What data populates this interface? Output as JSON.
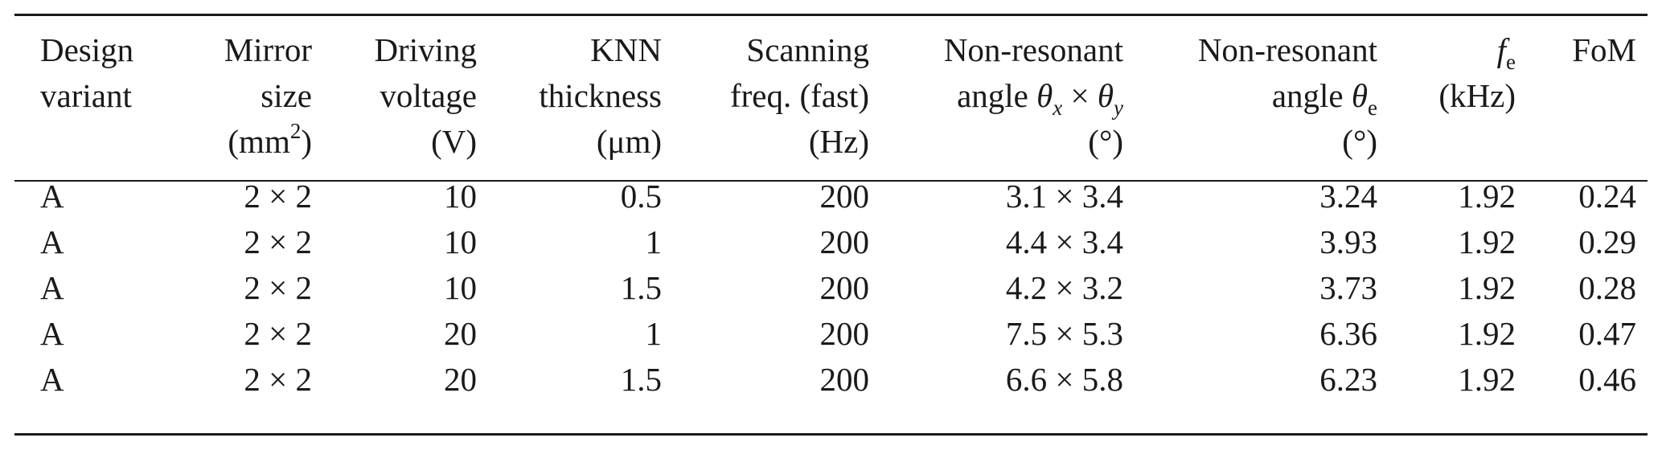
{
  "table": {
    "columns": [
      {
        "key": "variant",
        "lines": [
          "Design",
          "variant"
        ]
      },
      {
        "key": "mirror_size",
        "lines": [
          "Mirror",
          "size",
          "(mm²)"
        ]
      },
      {
        "key": "voltage",
        "lines": [
          "Driving",
          "voltage",
          "(V)"
        ]
      },
      {
        "key": "knn_thickness",
        "lines": [
          "KNN",
          "thickness",
          "(μm)"
        ]
      },
      {
        "key": "scan_freq",
        "lines": [
          "Scanning",
          "freq. (fast)",
          "(Hz)"
        ]
      },
      {
        "key": "angle_xy",
        "lines": [
          "Non-resonant",
          "angle θx × θy",
          "(°)"
        ]
      },
      {
        "key": "angle_e",
        "lines": [
          "Non-resonant",
          "angle θe",
          "(°)"
        ]
      },
      {
        "key": "fe",
        "lines": [
          "fe",
          "(kHz)"
        ]
      },
      {
        "key": "fom",
        "lines": [
          "FoM"
        ]
      }
    ],
    "header": {
      "variant": {
        "l1": "Design",
        "l2": "variant"
      },
      "mirror_size": {
        "l1": "Mirror",
        "l2": "size",
        "l3_pre": "(mm",
        "l3_sup": "2",
        "l3_post": ")"
      },
      "voltage": {
        "l1": "Driving",
        "l2": "voltage",
        "l3": "(V)"
      },
      "knn_thickness": {
        "l1": "KNN",
        "l2": "thickness",
        "l3": "(μm)"
      },
      "scan_freq": {
        "l1": "Scanning",
        "l2": "freq. (fast)",
        "l3": "(Hz)"
      },
      "angle_xy": {
        "l1": "Non-resonant",
        "l2_pre": "angle ",
        "theta": "θ",
        "sub_x": "x",
        "times": " × ",
        "sub_y": "y",
        "l3": "(°)"
      },
      "angle_e": {
        "l1": "Non-resonant",
        "l2_pre": "angle ",
        "theta": "θ",
        "sub_e": "e",
        "l3": "(°)"
      },
      "fe": {
        "f": "f",
        "sub": "e",
        "l2": "(kHz)"
      },
      "fom": {
        "l1": "FoM"
      }
    },
    "rows": [
      {
        "variant": "A",
        "mirror_size": "2 × 2",
        "voltage": "10",
        "knn_thickness": "0.5",
        "scan_freq": "200",
        "angle_xy": "3.1 × 3.4",
        "angle_e": "3.24",
        "fe": "1.92",
        "fom": "0.24"
      },
      {
        "variant": "A",
        "mirror_size": "2 × 2",
        "voltage": "10",
        "knn_thickness": "1",
        "scan_freq": "200",
        "angle_xy": "4.4 × 3.4",
        "angle_e": "3.93",
        "fe": "1.92",
        "fom": "0.29"
      },
      {
        "variant": "A",
        "mirror_size": "2 × 2",
        "voltage": "10",
        "knn_thickness": "1.5",
        "scan_freq": "200",
        "angle_xy": "4.2 × 3.2",
        "angle_e": "3.73",
        "fe": "1.92",
        "fom": "0.28"
      },
      {
        "variant": "A",
        "mirror_size": "2 × 2",
        "voltage": "20",
        "knn_thickness": "1",
        "scan_freq": "200",
        "angle_xy": "7.5 × 5.3",
        "angle_e": "6.36",
        "fe": "1.92",
        "fom": "0.47"
      },
      {
        "variant": "A",
        "mirror_size": "2 × 2",
        "voltage": "20",
        "knn_thickness": "1.5",
        "scan_freq": "200",
        "angle_xy": "6.6 × 5.8",
        "angle_e": "6.23",
        "fe": "1.92",
        "fom": "0.46"
      }
    ]
  }
}
